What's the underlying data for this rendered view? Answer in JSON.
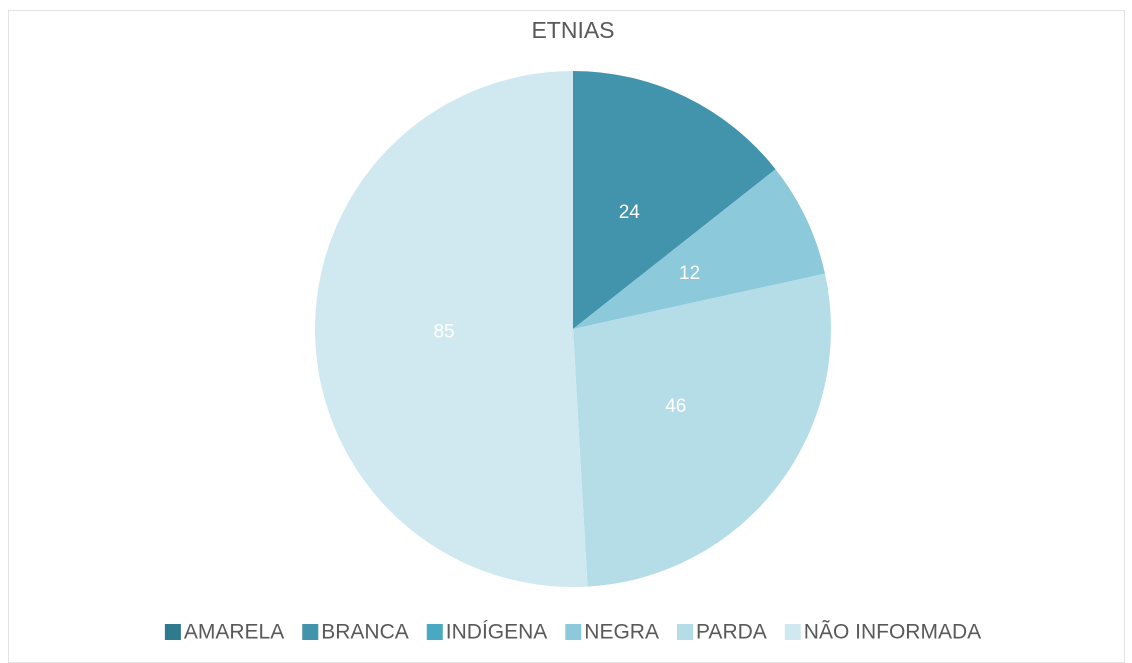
{
  "chart_data": {
    "type": "pie",
    "title": "ETNIAS",
    "categories": [
      "AMARELA",
      "BRANCA",
      "INDÍGENA",
      "NEGRA",
      "PARDA",
      "NÃO INFORMADA"
    ],
    "values": [
      0,
      24,
      0,
      12,
      46,
      85
    ],
    "colors": [
      "#2f7a8c",
      "#4194ab",
      "#4aa9c2",
      "#8ccadb",
      "#b4dde7",
      "#d0e9f0"
    ],
    "legend": "bottom"
  }
}
